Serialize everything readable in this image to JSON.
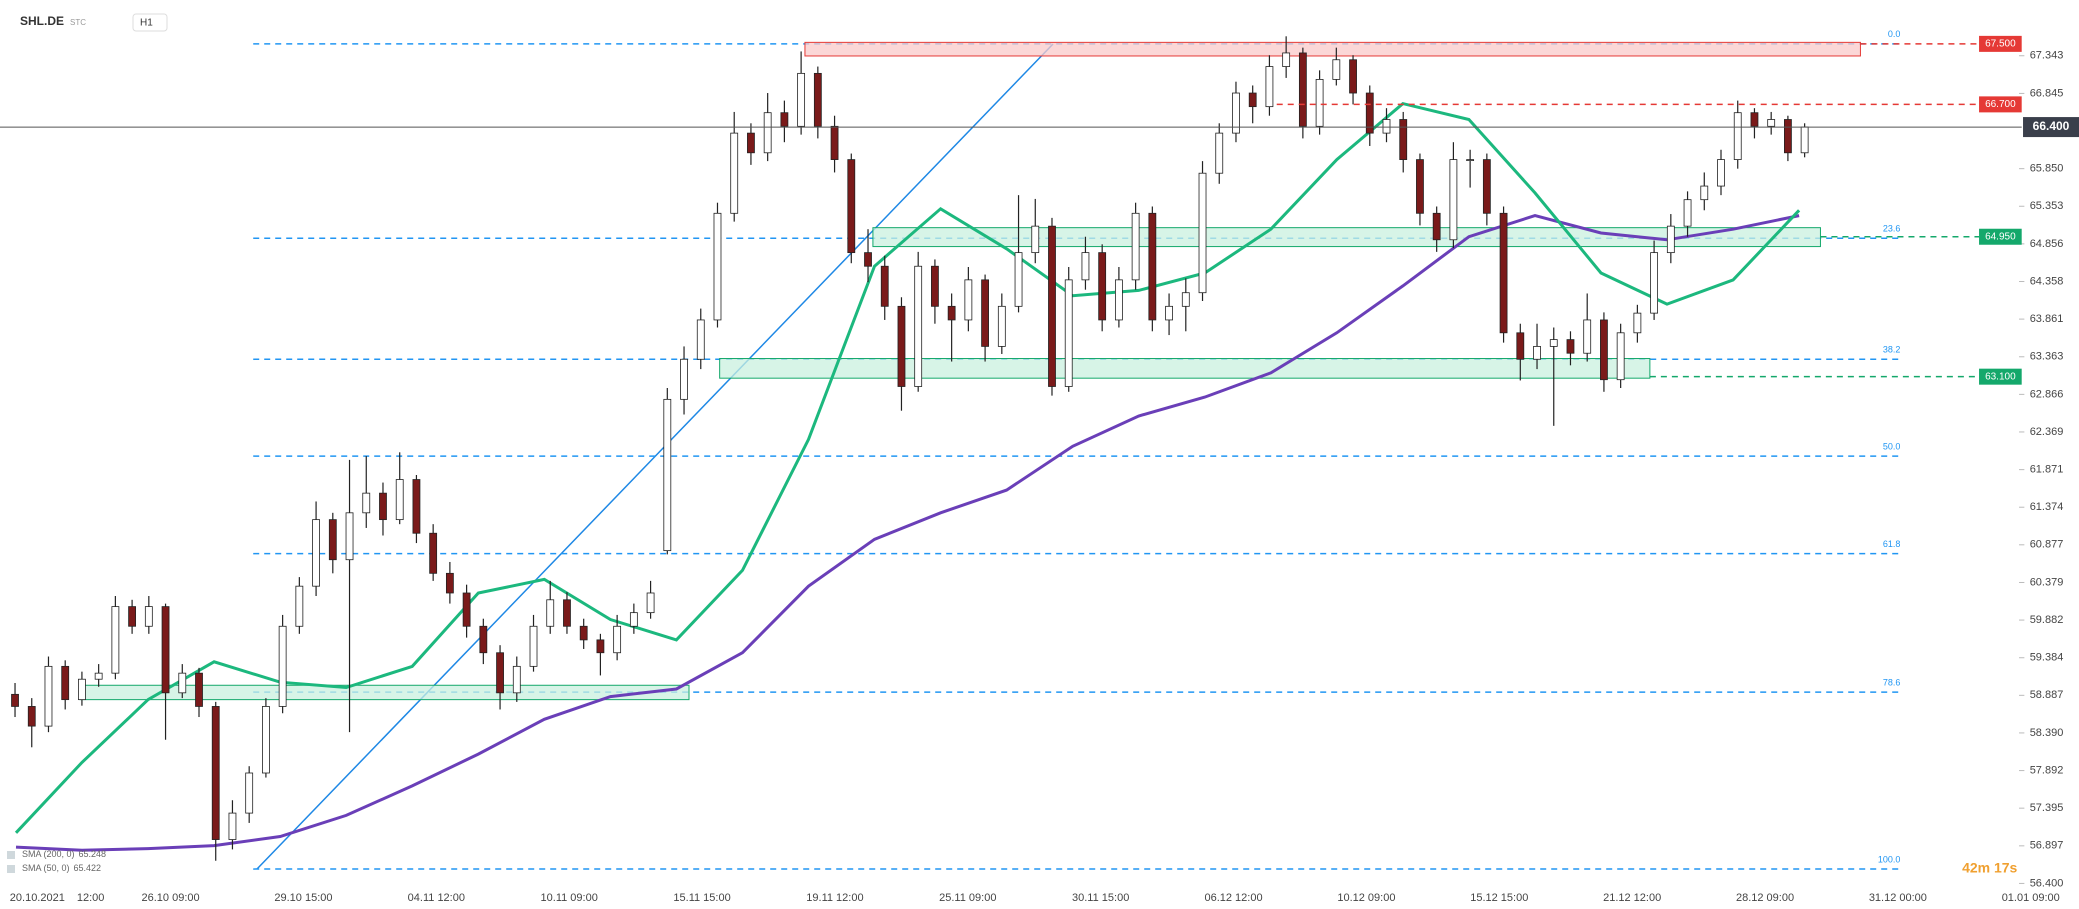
{
  "header": {
    "symbol": "SHL.DE",
    "exchange": "STC",
    "interval": "H1"
  },
  "chart_data": {
    "type": "candlestick",
    "ylim": [
      56.31,
      68.08
    ],
    "yticks": [
      67.343,
      66.845,
      {
        "value": 65.85,
        "label": "65.850"
      },
      65.353,
      64.856,
      64.358,
      63.861,
      63.363,
      62.866,
      62.369,
      61.871,
      61.374,
      60.877,
      60.379,
      59.882,
      59.384,
      58.887,
      {
        "value": 58.39,
        "label": "58.390"
      },
      57.892,
      57.395,
      56.897,
      {
        "value": 56.4,
        "label": "56.400"
      }
    ],
    "x_labels": [
      "20.10.2021",
      "12:00",
      "26.10 09:00",
      "29.10 15:00",
      "04.11 12:00",
      "10.11 09:00",
      "15.11 15:00",
      "19.11 12:00",
      "25.11 09:00",
      "30.11 15:00",
      "06.12 12:00",
      "10.12 09:00",
      "15.12 15:00",
      "21.12 12:00",
      "28.12 09:00",
      "31.12 00:00",
      "01.01 09:00"
    ],
    "up_color": "#ffffff",
    "down_color": "#7a1a1a",
    "candles": [
      [
        58.9,
        59.05,
        58.6,
        58.74
      ],
      [
        58.74,
        58.85,
        58.2,
        58.48
      ],
      [
        58.48,
        59.4,
        58.4,
        59.27
      ],
      [
        59.27,
        59.35,
        58.7,
        58.83
      ],
      [
        58.83,
        59.2,
        58.75,
        59.1
      ],
      [
        59.1,
        59.3,
        59.0,
        59.18
      ],
      [
        59.18,
        60.2,
        59.1,
        60.06
      ],
      [
        60.06,
        60.15,
        59.7,
        59.8
      ],
      [
        59.8,
        60.2,
        59.7,
        60.06
      ],
      [
        60.06,
        60.1,
        58.3,
        58.92
      ],
      [
        58.92,
        59.3,
        58.85,
        59.18
      ],
      [
        59.18,
        59.25,
        58.6,
        58.74
      ],
      [
        58.74,
        58.8,
        56.7,
        56.98
      ],
      [
        56.98,
        57.5,
        56.85,
        57.33
      ],
      [
        57.33,
        57.95,
        57.2,
        57.86
      ],
      [
        57.86,
        58.85,
        57.8,
        58.74
      ],
      [
        58.74,
        59.95,
        58.65,
        59.8
      ],
      [
        59.8,
        60.45,
        59.7,
        60.33
      ],
      [
        60.33,
        61.45,
        60.2,
        61.21
      ],
      [
        61.21,
        61.3,
        60.5,
        60.68
      ],
      [
        60.68,
        62.0,
        58.4,
        61.3
      ],
      [
        61.3,
        62.05,
        61.1,
        61.56
      ],
      [
        61.56,
        61.7,
        61.0,
        61.21
      ],
      [
        61.21,
        62.1,
        61.15,
        61.74
      ],
      [
        61.74,
        61.8,
        60.9,
        61.03
      ],
      [
        61.03,
        61.15,
        60.4,
        60.5
      ],
      [
        60.5,
        60.65,
        60.1,
        60.24
      ],
      [
        60.24,
        60.35,
        59.65,
        59.8
      ],
      [
        59.8,
        59.9,
        59.3,
        59.45
      ],
      [
        59.45,
        59.55,
        58.7,
        58.92
      ],
      [
        58.92,
        59.4,
        58.8,
        59.27
      ],
      [
        59.27,
        59.95,
        59.2,
        59.8
      ],
      [
        59.8,
        60.4,
        59.7,
        60.15
      ],
      [
        60.15,
        60.25,
        59.7,
        59.8
      ],
      [
        59.8,
        59.9,
        59.5,
        59.62
      ],
      [
        59.62,
        59.7,
        59.15,
        59.45
      ],
      [
        59.45,
        59.95,
        59.35,
        59.8
      ],
      [
        59.8,
        60.1,
        59.7,
        59.98
      ],
      [
        59.98,
        60.4,
        59.9,
        60.24
      ],
      [
        60.8,
        62.95,
        60.75,
        62.8
      ],
      [
        62.8,
        63.5,
        62.6,
        63.33
      ],
      [
        63.33,
        64.0,
        63.2,
        63.85
      ],
      [
        63.85,
        65.4,
        63.75,
        65.26
      ],
      [
        65.26,
        66.6,
        65.15,
        66.32
      ],
      [
        66.32,
        66.45,
        65.9,
        66.06
      ],
      [
        66.06,
        66.85,
        65.95,
        66.59
      ],
      [
        66.59,
        66.75,
        66.2,
        66.41
      ],
      [
        66.41,
        67.4,
        66.3,
        67.11
      ],
      [
        67.11,
        67.2,
        66.25,
        66.41
      ],
      [
        66.41,
        66.55,
        65.8,
        65.97
      ],
      [
        65.97,
        66.05,
        64.6,
        64.74
      ],
      [
        64.74,
        65.05,
        64.35,
        64.56
      ],
      [
        64.56,
        64.7,
        63.85,
        64.03
      ],
      [
        64.03,
        64.15,
        62.65,
        62.97
      ],
      [
        62.97,
        64.75,
        62.9,
        64.56
      ],
      [
        64.56,
        64.65,
        63.8,
        64.03
      ],
      [
        64.03,
        64.2,
        63.3,
        63.85
      ],
      [
        63.85,
        64.55,
        63.7,
        64.38
      ],
      [
        64.38,
        64.45,
        63.3,
        63.5
      ],
      [
        63.5,
        64.2,
        63.4,
        64.03
      ],
      [
        64.03,
        65.5,
        63.95,
        64.74
      ],
      [
        64.74,
        65.45,
        64.6,
        65.09
      ],
      [
        65.09,
        65.2,
        62.85,
        62.97
      ],
      [
        62.97,
        64.55,
        62.9,
        64.38
      ],
      [
        64.38,
        64.95,
        64.25,
        64.74
      ],
      [
        64.74,
        64.85,
        63.7,
        63.85
      ],
      [
        63.85,
        64.55,
        63.75,
        64.38
      ],
      [
        64.38,
        65.4,
        64.25,
        65.26
      ],
      [
        65.26,
        65.35,
        63.7,
        63.85
      ],
      [
        63.85,
        64.2,
        63.65,
        64.03
      ],
      [
        64.03,
        64.4,
        63.7,
        64.21
      ],
      [
        64.21,
        65.95,
        64.1,
        65.79
      ],
      [
        65.79,
        66.45,
        65.65,
        66.32
      ],
      [
        66.32,
        67.0,
        66.2,
        66.85
      ],
      [
        66.85,
        66.95,
        66.45,
        66.67
      ],
      [
        66.67,
        67.35,
        66.55,
        67.2
      ],
      [
        67.2,
        67.6,
        67.05,
        67.38
      ],
      [
        67.38,
        67.45,
        66.25,
        66.41
      ],
      [
        66.41,
        67.15,
        66.3,
        67.03
      ],
      [
        67.03,
        67.45,
        66.95,
        67.29
      ],
      [
        67.29,
        67.35,
        66.7,
        66.85
      ],
      [
        66.85,
        66.95,
        66.15,
        66.32
      ],
      [
        66.32,
        66.65,
        66.2,
        66.5
      ],
      [
        66.5,
        66.6,
        65.8,
        65.97
      ],
      [
        65.97,
        66.05,
        65.1,
        65.26
      ],
      [
        65.26,
        65.35,
        64.75,
        64.91
      ],
      [
        64.91,
        66.2,
        64.8,
        65.97
      ],
      [
        65.97,
        66.1,
        65.6,
        65.97
      ],
      [
        65.97,
        66.05,
        65.1,
        65.26
      ],
      [
        65.26,
        65.35,
        63.55,
        63.68
      ],
      [
        63.68,
        63.8,
        63.05,
        63.33
      ],
      [
        63.33,
        63.8,
        63.2,
        63.5
      ],
      [
        63.5,
        63.75,
        62.45,
        63.59
      ],
      [
        63.59,
        63.7,
        63.25,
        63.41
      ],
      [
        63.41,
        64.2,
        63.3,
        63.85
      ],
      [
        63.85,
        63.95,
        62.9,
        63.06
      ],
      [
        63.06,
        63.8,
        62.95,
        63.68
      ],
      [
        63.68,
        64.05,
        63.55,
        63.94
      ],
      [
        63.94,
        64.9,
        63.85,
        64.74
      ],
      [
        64.74,
        65.25,
        64.6,
        65.09
      ],
      [
        65.09,
        65.55,
        64.95,
        65.44
      ],
      [
        65.44,
        65.8,
        65.3,
        65.62
      ],
      [
        65.62,
        66.1,
        65.5,
        65.97
      ],
      [
        65.97,
        66.75,
        65.85,
        66.59
      ],
      [
        66.59,
        66.65,
        66.25,
        66.41
      ],
      [
        66.41,
        66.6,
        66.3,
        66.5
      ],
      [
        66.5,
        66.55,
        65.95,
        66.06
      ],
      [
        66.06,
        66.45,
        66.0,
        66.4
      ]
    ],
    "series": [
      {
        "name": "SMA (200, 0)",
        "last": 65.248,
        "color": "#6a3fb8",
        "values": [
          56.88,
          56.84,
          56.86,
          56.9,
          57.02,
          57.3,
          57.69,
          58.11,
          58.57,
          58.87,
          58.97,
          59.45,
          60.33,
          60.95,
          61.3,
          61.6,
          62.18,
          62.58,
          62.83,
          63.15,
          63.68,
          64.3,
          64.95,
          65.23,
          65.0,
          64.91,
          65.05,
          65.23
        ]
      },
      {
        "name": "SMA (50, 0)",
        "last": 65.422,
        "color": "#1cb87e",
        "values": [
          57.07,
          58.0,
          58.83,
          59.33,
          59.06,
          58.99,
          59.27,
          60.24,
          60.42,
          59.89,
          59.62,
          60.54,
          62.27,
          64.56,
          65.32,
          64.79,
          64.17,
          64.24,
          64.47,
          65.05,
          65.97,
          66.71,
          66.5,
          65.53,
          64.47,
          64.06,
          64.38,
          65.3
        ]
      }
    ],
    "levels": [
      {
        "price": {
          "value": 67.5,
          "label": "67.500"
        },
        "color": "#e53935"
      },
      {
        "price": {
          "value": 66.7,
          "label": "66.700"
        },
        "color": "#e53935"
      },
      {
        "price": {
          "value": 64.95,
          "label": "64.950"
        },
        "color": "#14a86b"
      },
      {
        "price": {
          "value": 63.1,
          "label": "63.100"
        },
        "color": "#14a86b"
      }
    ],
    "last_price": {
      "value": 66.4,
      "label": "66.400"
    },
    "fib_levels": [
      {
        "name": "0.0",
        "value": 67.5
      },
      {
        "name": "23.6",
        "value": 64.93
      },
      {
        "name": "38.2",
        "value": 63.33
      },
      {
        "name": "50.0",
        "value": 62.05
      },
      {
        "name": "61.8",
        "value": 60.76
      },
      {
        "name": "78.6",
        "value": 58.93
      },
      {
        "name": "100.0",
        "value": 56.59
      }
    ],
    "fib_color": "#2196f3",
    "zones": [
      {
        "top": 67.52,
        "bottom": 67.34,
        "color": "#f9caca",
        "border": "#e53935"
      },
      {
        "top": 65.07,
        "bottom": 64.82,
        "color": "#c9f0df",
        "border": "#14a86b"
      },
      {
        "top": 63.34,
        "bottom": 63.08,
        "color": "#c9f0df",
        "border": "#14a86b"
      },
      {
        "top": 59.02,
        "bottom": 58.83,
        "color": "#c9f0df",
        "border": "#14a86b"
      }
    ],
    "timer": "42m 17s"
  }
}
